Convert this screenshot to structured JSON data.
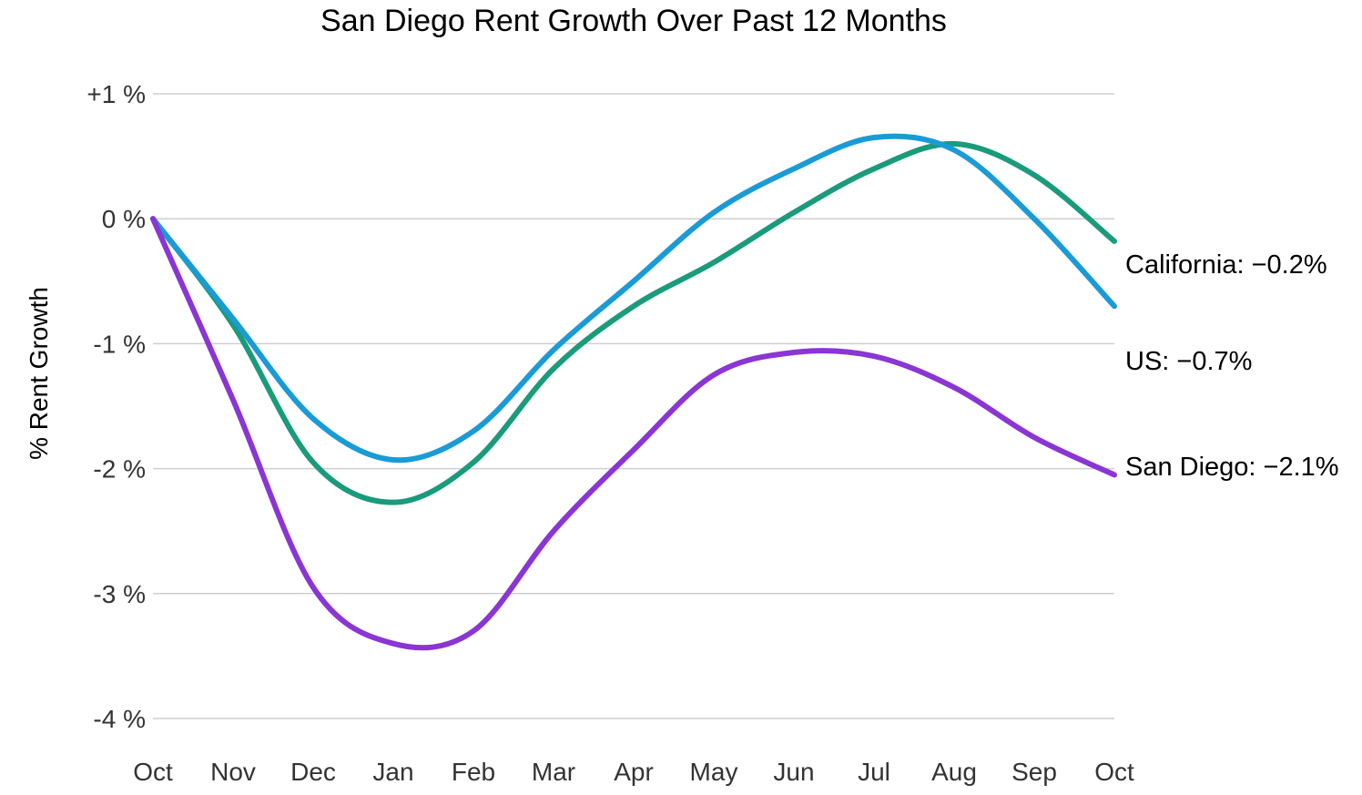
{
  "chart_data": {
    "type": "line",
    "title": "San Diego Rent Growth Over Past 12 Months",
    "ylabel": "% Rent Growth",
    "xlabel": "",
    "categories": [
      "Oct",
      "Nov",
      "Dec",
      "Jan",
      "Feb",
      "Mar",
      "Apr",
      "May",
      "Jun",
      "Jul",
      "Aug",
      "Sep",
      "Oct"
    ],
    "yticks": [
      {
        "value": 1,
        "label": "+1 %"
      },
      {
        "value": 0,
        "label": "0 %"
      },
      {
        "value": -1,
        "label": "-1 %"
      },
      {
        "value": -2,
        "label": "-2 %"
      },
      {
        "value": -3,
        "label": "-3 %"
      },
      {
        "value": -4,
        "label": "-4 %"
      }
    ],
    "ylim": [
      -4,
      1
    ],
    "grid": true,
    "legend": "end-labels",
    "series": [
      {
        "end_label": "California: −0.2%",
        "color": "#1a9b7b",
        "values": [
          0,
          -0.85,
          -1.95,
          -2.27,
          -1.95,
          -1.2,
          -0.7,
          -0.35,
          0.05,
          0.4,
          0.6,
          0.35,
          -0.18
        ]
      },
      {
        "end_label": "US: −0.7%",
        "color": "#1a9bd6",
        "values": [
          0,
          -0.8,
          -1.6,
          -1.93,
          -1.7,
          -1.05,
          -0.5,
          0.05,
          0.4,
          0.65,
          0.55,
          0.0,
          -0.7
        ]
      },
      {
        "end_label": "San Diego: −2.1%",
        "color": "#8a35d4",
        "values": [
          0,
          -1.45,
          -2.95,
          -3.4,
          -3.3,
          -2.5,
          -1.85,
          -1.25,
          -1.07,
          -1.1,
          -1.35,
          -1.75,
          -2.05
        ]
      }
    ]
  }
}
